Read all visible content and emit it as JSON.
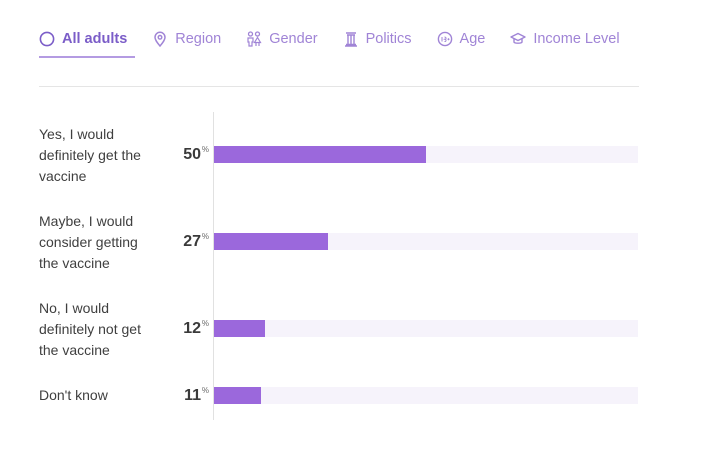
{
  "tabs": [
    {
      "label": "All adults",
      "icon": "circle-icon",
      "active": true
    },
    {
      "label": "Region",
      "icon": "map-pin-icon",
      "active": false
    },
    {
      "label": "Gender",
      "icon": "people-icon",
      "active": false
    },
    {
      "label": "Politics",
      "icon": "column-icon",
      "active": false
    },
    {
      "label": "Age",
      "icon": "age-18-icon",
      "active": false
    },
    {
      "label": "Income Level",
      "icon": "graduation-cap-icon",
      "active": false
    }
  ],
  "colors": {
    "accent": "#9b68dc",
    "tab_text": "#a084d6",
    "track": "#f6f3fb"
  },
  "chart_data": {
    "type": "bar",
    "orientation": "horizontal",
    "unit": "%",
    "categories": [
      "Yes, I would definitely get the vaccine",
      "Maybe, I would consider getting the vaccine",
      "No, I would definitely not get the vaccine",
      "Don't know"
    ],
    "values": [
      50,
      27,
      12,
      11
    ],
    "xlim": [
      0,
      100
    ],
    "grid": false
  }
}
